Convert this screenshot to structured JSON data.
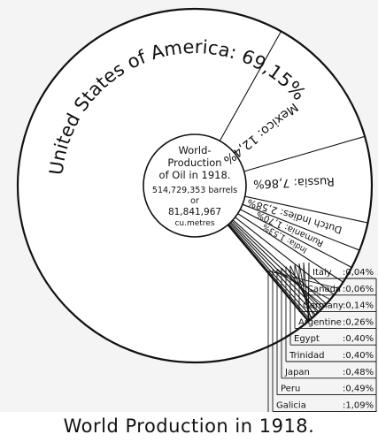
{
  "caption": "World Production in 1918.",
  "chart_data": {
    "type": "pie",
    "center_text": [
      "World-",
      "Production",
      "of Oil in 1918.",
      "514,729,353 barrels",
      "or",
      "81,841,967",
      "cu.metres"
    ],
    "slices": [
      {
        "label": "United States of America",
        "value": 69.15,
        "value_text": "69,15%"
      },
      {
        "label": "Mexico",
        "value": 12.4,
        "value_text": "12,4%"
      },
      {
        "label": "Russia",
        "value": 7.86,
        "value_text": "7,86%"
      },
      {
        "label": "Dutch Indies",
        "value": 2.58,
        "value_text": "2,58%"
      },
      {
        "label": "Rumania",
        "value": 1.7,
        "value_text": "1,70%"
      },
      {
        "label": "India",
        "value": 1.53,
        "value_text": "1,53%"
      },
      {
        "label": "Persia",
        "value": 1.4,
        "value_text": "1,40%"
      },
      {
        "label": "Galicia",
        "value": 1.09,
        "value_text": "1,09%"
      },
      {
        "label": "Peru",
        "value": 0.49,
        "value_text": "0,49%"
      },
      {
        "label": "Japan",
        "value": 0.48,
        "value_text": "0,48%"
      },
      {
        "label": "Trinidad",
        "value": 0.4,
        "value_text": "0,40%"
      },
      {
        "label": "Egypt",
        "value": 0.4,
        "value_text": "0,40%"
      },
      {
        "label": "Argentine",
        "value": 0.26,
        "value_text": "0,26%"
      },
      {
        "label": "Germany",
        "value": 0.14,
        "value_text": "0,14%"
      },
      {
        "label": "Canada",
        "value": 0.06,
        "value_text": "0,06%"
      },
      {
        "label": "Italy",
        "value": 0.04,
        "value_text": "0,04%"
      }
    ]
  }
}
